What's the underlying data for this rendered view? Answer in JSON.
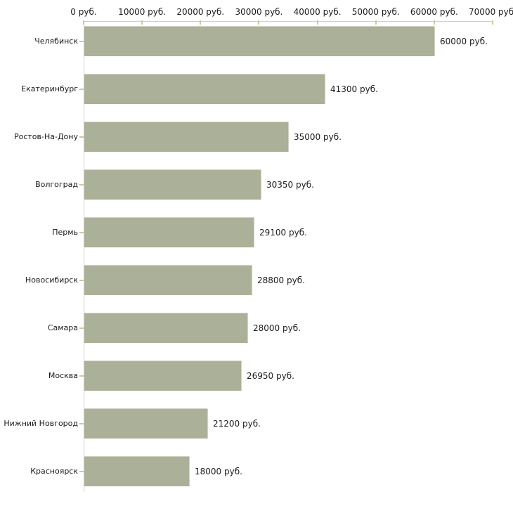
{
  "chart_data": {
    "type": "bar",
    "orientation": "horizontal",
    "title": "",
    "xlabel": "",
    "ylabel": "",
    "xlim": [
      0,
      70000
    ],
    "grid": false,
    "legend": false,
    "categories": [
      "Челябинск",
      "Екатеринбург",
      "Ростов-На-Дону",
      "Волгоград",
      "Пермь",
      "Новосибирск",
      "Самара",
      "Москва",
      "Нижний Новгород",
      "Красноярск"
    ],
    "values": [
      60000,
      41300,
      35000,
      30350,
      29100,
      28800,
      28000,
      26950,
      21200,
      18000
    ],
    "value_labels": [
      "60000 руб.",
      "41300 руб.",
      "35000 руб.",
      "30350 руб.",
      "29100 руб.",
      "28800 руб.",
      "28000 руб.",
      "26950 руб.",
      "21200 руб.",
      "18000 руб."
    ],
    "x_ticks": [
      "0 руб.",
      "10000 руб.",
      "20000 руб.",
      "30000 руб.",
      "40000 руб.",
      "50000 руб.",
      "60000 руб.",
      "70000 руб."
    ],
    "x_tick_values": [
      0,
      10000,
      20000,
      30000,
      40000,
      50000,
      60000,
      70000
    ],
    "colors": {
      "bar": "#abb098",
      "axis": "#cfcfcf",
      "tick": "#c9c9a2",
      "text": "#1a1a1a",
      "background": "#ffffff"
    }
  }
}
